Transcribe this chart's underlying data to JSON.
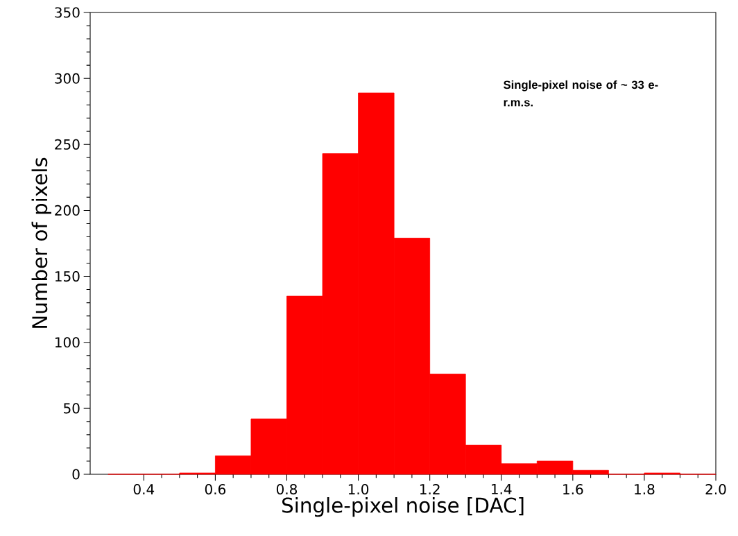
{
  "chart_data": {
    "type": "histogram",
    "xlabel": "Single-pixel noise [DAC]",
    "ylabel": "Number of pixels",
    "bins": [
      0.3,
      0.4,
      0.5,
      0.6,
      0.7,
      0.8,
      0.9,
      1.0,
      1.1,
      1.2,
      1.3,
      1.4,
      1.5,
      1.6,
      1.7,
      1.8,
      1.9,
      2.0
    ],
    "values": [
      0,
      0,
      1,
      14,
      42,
      135,
      243,
      289,
      179,
      76,
      22,
      8,
      10,
      3,
      0,
      1,
      0
    ],
    "color": "#ff0000",
    "xlim": [
      0.25,
      2.0
    ],
    "xticks": [
      0.4,
      0.6,
      0.8,
      {
        "value": 1.0,
        "label": "1.0"
      },
      1.2,
      1.4,
      1.6,
      1.8,
      {
        "value": 2.0,
        "label": "2.0"
      }
    ],
    "ylim": [
      0,
      350
    ],
    "yticks": [
      0,
      50,
      100,
      150,
      200,
      250,
      300,
      350
    ],
    "grid": false,
    "annotations": [
      "Single-pixel noise of ~ 33 e- r.m.s."
    ]
  }
}
